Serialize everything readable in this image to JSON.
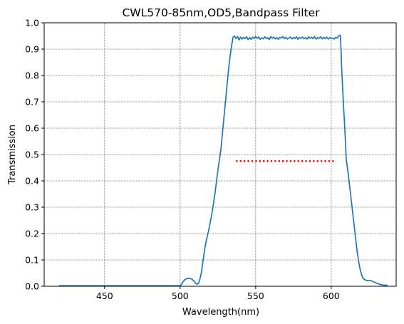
{
  "chart_data": {
    "type": "line",
    "title": "CWL570-85nm,OD5,Bandpass Filter",
    "xlabel": "Wavelength(nm)",
    "ylabel": "Transmission",
    "xlim": [
      410,
      643
    ],
    "ylim": [
      0,
      1.0
    ],
    "xticks": [
      450,
      500,
      550,
      600
    ],
    "yticks": [
      0.0,
      0.1,
      0.2,
      0.3,
      0.4,
      0.5,
      0.6,
      0.7,
      0.8,
      0.9,
      1.0
    ],
    "xtick_labels": [
      "450",
      "500",
      "550",
      "600"
    ],
    "ytick_labels": [
      "0.0",
      "0.1",
      "0.2",
      "0.3",
      "0.4",
      "0.5",
      "0.6",
      "0.7",
      "0.8",
      "0.9",
      "1.0"
    ],
    "grid": true,
    "series": [
      {
        "color": "#1f77b4",
        "style": "solid",
        "points": [
          [
            420,
            0.002
          ],
          [
            440,
            0.002
          ],
          [
            460,
            0.002
          ],
          [
            480,
            0.002
          ],
          [
            495,
            0.002
          ],
          [
            500,
            0.002
          ],
          [
            501,
            0.008
          ],
          [
            502,
            0.018
          ],
          [
            503,
            0.024
          ],
          [
            504,
            0.028
          ],
          [
            505,
            0.03
          ],
          [
            506,
            0.03
          ],
          [
            507,
            0.029
          ],
          [
            508,
            0.026
          ],
          [
            509,
            0.02
          ],
          [
            510,
            0.013
          ],
          [
            511,
            0.008
          ],
          [
            512,
            0.01
          ],
          [
            513,
            0.025
          ],
          [
            514,
            0.05
          ],
          [
            515,
            0.09
          ],
          [
            516,
            0.13
          ],
          [
            517,
            0.165
          ],
          [
            518,
            0.19
          ],
          [
            519,
            0.215
          ],
          [
            520,
            0.245
          ],
          [
            521,
            0.275
          ],
          [
            522,
            0.31
          ],
          [
            523,
            0.35
          ],
          [
            524,
            0.395
          ],
          [
            525,
            0.44
          ],
          [
            526,
            0.48
          ],
          [
            527,
            0.52
          ],
          [
            528,
            0.58
          ],
          [
            529,
            0.64
          ],
          [
            530,
            0.7
          ],
          [
            531,
            0.76
          ],
          [
            532,
            0.82
          ],
          [
            533,
            0.87
          ],
          [
            534,
            0.91
          ],
          [
            535,
            0.945
          ],
          [
            536,
            0.95
          ],
          [
            537,
            0.94
          ],
          [
            538,
            0.948
          ],
          [
            539,
            0.935
          ],
          [
            540,
            0.946
          ],
          [
            541,
            0.938
          ],
          [
            542,
            0.945
          ],
          [
            543,
            0.94
          ],
          [
            544,
            0.947
          ],
          [
            545,
            0.936
          ],
          [
            546,
            0.944
          ],
          [
            547,
            0.937
          ],
          [
            548,
            0.946
          ],
          [
            549,
            0.94
          ],
          [
            550,
            0.948
          ],
          [
            551,
            0.941
          ],
          [
            552,
            0.946
          ],
          [
            553,
            0.937
          ],
          [
            554,
            0.943
          ],
          [
            555,
            0.939
          ],
          [
            556,
            0.947
          ],
          [
            557,
            0.94
          ],
          [
            558,
            0.944
          ],
          [
            559,
            0.936
          ],
          [
            560,
            0.948
          ],
          [
            561,
            0.941
          ],
          [
            562,
            0.946
          ],
          [
            563,
            0.939
          ],
          [
            564,
            0.944
          ],
          [
            565,
            0.937
          ],
          [
            566,
            0.945
          ],
          [
            567,
            0.942
          ],
          [
            568,
            0.948
          ],
          [
            569,
            0.94
          ],
          [
            570,
            0.945
          ],
          [
            571,
            0.938
          ],
          [
            572,
            0.943
          ],
          [
            573,
            0.946
          ],
          [
            574,
            0.939
          ],
          [
            575,
            0.944
          ],
          [
            576,
            0.94
          ],
          [
            577,
            0.947
          ],
          [
            578,
            0.937
          ],
          [
            579,
            0.945
          ],
          [
            580,
            0.941
          ],
          [
            581,
            0.946
          ],
          [
            582,
            0.939
          ],
          [
            583,
            0.944
          ],
          [
            584,
            0.938
          ],
          [
            585,
            0.947
          ],
          [
            586,
            0.941
          ],
          [
            587,
            0.945
          ],
          [
            588,
            0.94
          ],
          [
            589,
            0.948
          ],
          [
            590,
            0.938
          ],
          [
            591,
            0.944
          ],
          [
            592,
            0.941
          ],
          [
            593,
            0.947
          ],
          [
            594,
            0.939
          ],
          [
            595,
            0.945
          ],
          [
            596,
            0.94
          ],
          [
            597,
            0.946
          ],
          [
            598,
            0.938
          ],
          [
            599,
            0.944
          ],
          [
            600,
            0.94
          ],
          [
            601,
            0.942
          ],
          [
            602,
            0.938
          ],
          [
            603,
            0.945
          ],
          [
            604,
            0.942
          ],
          [
            605,
            0.95
          ],
          [
            606,
            0.953
          ],
          [
            606.5,
            0.9
          ],
          [
            607,
            0.82
          ],
          [
            608,
            0.7
          ],
          [
            609,
            0.6
          ],
          [
            610,
            0.48
          ],
          [
            611,
            0.44
          ],
          [
            612,
            0.39
          ],
          [
            613,
            0.34
          ],
          [
            614,
            0.29
          ],
          [
            615,
            0.24
          ],
          [
            616,
            0.19
          ],
          [
            617,
            0.14
          ],
          [
            618,
            0.1
          ],
          [
            619,
            0.068
          ],
          [
            620,
            0.045
          ],
          [
            621,
            0.032
          ],
          [
            622,
            0.026
          ],
          [
            623,
            0.023
          ],
          [
            624,
            0.022
          ],
          [
            625,
            0.022
          ],
          [
            626,
            0.021
          ],
          [
            627,
            0.02
          ],
          [
            628,
            0.017
          ],
          [
            629,
            0.014
          ],
          [
            630,
            0.012
          ],
          [
            631,
            0.01
          ],
          [
            632,
            0.008
          ],
          [
            633,
            0.006
          ],
          [
            634,
            0.005
          ],
          [
            635,
            0.004
          ],
          [
            636,
            0.004
          ],
          [
            637,
            0.004
          ]
        ]
      },
      {
        "color": "#ff0000",
        "style": "dotted",
        "points": [
          [
            537,
            0.475
          ],
          [
            602,
            0.475
          ]
        ]
      }
    ]
  }
}
